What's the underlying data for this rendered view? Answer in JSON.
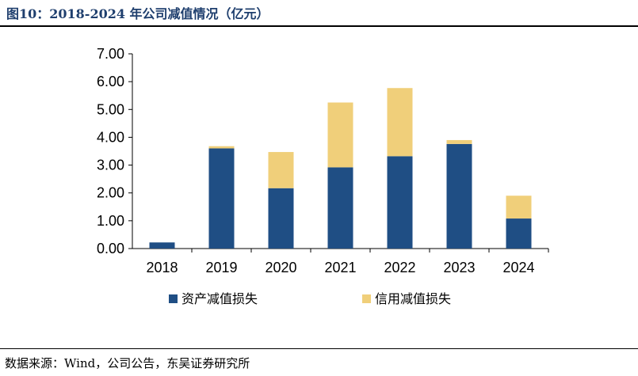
{
  "header": {
    "title": "图10：2018-2024 年公司减值情况（亿元）"
  },
  "footer": {
    "source": "数据来源：Wind，公司公告，东吴证券研究所"
  },
  "chart_data": {
    "type": "bar",
    "stacked": true,
    "title": "",
    "xlabel": "",
    "ylabel": "",
    "categories": [
      "2018",
      "2019",
      "2020",
      "2021",
      "2022",
      "2023",
      "2024"
    ],
    "ylim": [
      0,
      7
    ],
    "yticks": [
      "0.00",
      "1.00",
      "2.00",
      "3.00",
      "4.00",
      "5.00",
      "6.00",
      "7.00"
    ],
    "series": [
      {
        "name": "资产减值损失",
        "color": "#1f4e84",
        "values": [
          0.22,
          3.6,
          2.17,
          2.92,
          3.32,
          3.76,
          1.08
        ]
      },
      {
        "name": "信用减值损失",
        "color": "#f0cf7a",
        "values": [
          0.0,
          0.08,
          1.3,
          2.33,
          2.45,
          0.14,
          0.82
        ]
      }
    ],
    "legend": "bottom",
    "grid": false
  }
}
